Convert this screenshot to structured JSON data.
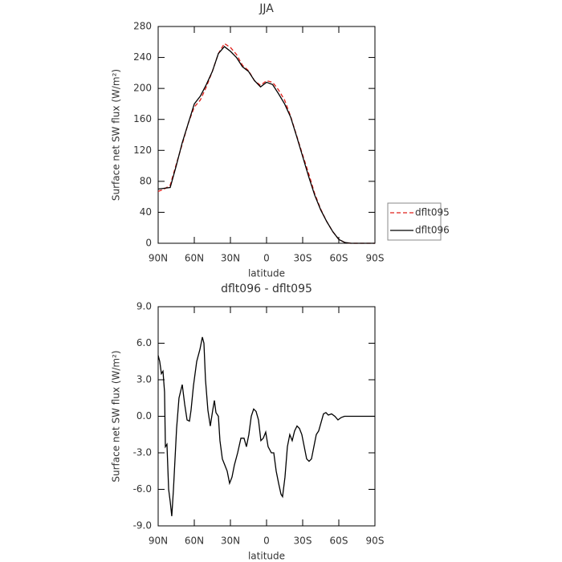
{
  "chart_data": [
    {
      "type": "line",
      "title": "JJA",
      "xlabel": "latitude",
      "ylabel": "Surface net SW flux (W/m²)",
      "x": [
        90,
        85,
        80,
        75,
        70,
        65,
        60,
        55,
        50,
        45,
        40,
        35,
        30,
        25,
        20,
        15,
        10,
        5,
        0,
        -5,
        -10,
        -15,
        -20,
        -25,
        -30,
        -35,
        -40,
        -45,
        -50,
        -55,
        -60,
        -65,
        -70,
        -75,
        -80,
        -85,
        -90
      ],
      "series": [
        {
          "name": "dflt095",
          "color": "#e0201b",
          "dash": true,
          "values": [
            67,
            70,
            75,
            102,
            128,
            155,
            176,
            185,
            202,
            222,
            245,
            258,
            253,
            244,
            230,
            223,
            210,
            204,
            210,
            208,
            198,
            185,
            164,
            139,
            114,
            90,
            64,
            44,
            28,
            15,
            5,
            1,
            0,
            0,
            0,
            0,
            0
          ]
        },
        {
          "name": "dflt096",
          "color": "#000000",
          "dash": false,
          "values": [
            70,
            71,
            72,
            100,
            130,
            155,
            180,
            190,
            205,
            222,
            245,
            254,
            248,
            240,
            228,
            222,
            210,
            202,
            208,
            205,
            193,
            180,
            163,
            138,
            112,
            86,
            62,
            43,
            28,
            15,
            5,
            1,
            0,
            0,
            0,
            0,
            0
          ]
        }
      ],
      "xlim": [
        90,
        -90
      ],
      "xticks": [
        {
          "value": 90,
          "label": "90N"
        },
        {
          "value": 60,
          "label": "60N"
        },
        {
          "value": 30,
          "label": "30N"
        },
        0,
        {
          "value": -30,
          "label": "30S"
        },
        {
          "value": -60,
          "label": "60S"
        },
        {
          "value": -90,
          "label": "90S"
        }
      ],
      "ylim": [
        0,
        280
      ],
      "yticks": [
        0,
        40,
        80,
        120,
        160,
        200,
        240,
        280
      ],
      "legend": "right"
    },
    {
      "type": "line",
      "title": "dflt096 - dflt095",
      "xlabel": "latitude",
      "ylabel": "Surface net SW flux (W/m²)",
      "x": [
        90,
        88.7,
        87.3,
        86,
        84.7,
        84,
        82.7,
        81.3,
        80,
        78.7,
        77.3,
        74.7,
        72.7,
        70,
        68,
        66,
        64,
        62.7,
        60.7,
        58,
        55.3,
        53.3,
        52,
        50.7,
        48.7,
        46.7,
        44.7,
        43.3,
        42,
        40,
        38.7,
        36.7,
        34.7,
        32.7,
        30.7,
        28.7,
        26.7,
        24,
        21.3,
        18.7,
        16.7,
        14.7,
        12.7,
        10.7,
        8.7,
        6.7,
        4.7,
        2.7,
        0.7,
        -1.3,
        -4,
        -6,
        -8,
        -10,
        -12,
        -13.3,
        -15.3,
        -17.3,
        -19.3,
        -21.3,
        -23.3,
        -25.3,
        -27.3,
        -29.3,
        -31.3,
        -33.3,
        -35.3,
        -37.3,
        -39.3,
        -41.3,
        -43.3,
        -45.3,
        -47.3,
        -49.3,
        -51.3,
        -54,
        -56.7,
        -59.3,
        -62,
        -64.7,
        -68.7,
        -90
      ],
      "series": [
        {
          "name": "dflt096 - dflt095",
          "color": "#000000",
          "dash": false,
          "values": [
            5.0,
            4.5,
            3.5,
            3.7,
            2.0,
            -2.5,
            -2.3,
            -6.0,
            -7.0,
            -8.2,
            -6.0,
            -1.0,
            1.5,
            2.6,
            1.0,
            -0.3,
            -0.4,
            0.5,
            2.5,
            4.5,
            5.5,
            6.5,
            6.0,
            3.0,
            0.5,
            -0.8,
            0.5,
            1.3,
            0.3,
            0,
            -2.0,
            -3.5,
            -4.0,
            -4.5,
            -5.5,
            -5.0,
            -4.0,
            -3.0,
            -1.8,
            -1.8,
            -2.5,
            -1.5,
            0,
            0.6,
            0.4,
            -0.3,
            -2.0,
            -1.8,
            -1.3,
            -2.5,
            -3.0,
            -3.0,
            -4.5,
            -5.5,
            -6.4,
            -6.6,
            -5.0,
            -2.5,
            -1.5,
            -2.0,
            -1.2,
            -0.8,
            -1.0,
            -1.5,
            -2.5,
            -3.5,
            -3.7,
            -3.5,
            -2.5,
            -1.5,
            -1.2,
            -0.5,
            0.2,
            0.3,
            0.1,
            0.2,
            0.0,
            -0.3,
            -0.1,
            0,
            0,
            0
          ]
        }
      ],
      "xlim": [
        90,
        -90
      ],
      "xticks": [
        {
          "value": 90,
          "label": "90N"
        },
        {
          "value": 60,
          "label": "60N"
        },
        {
          "value": 30,
          "label": "30N"
        },
        0,
        {
          "value": -30,
          "label": "30S"
        },
        {
          "value": -60,
          "label": "60S"
        },
        {
          "value": -90,
          "label": "90S"
        }
      ],
      "ylim": [
        -9,
        9
      ],
      "yticks": [
        {
          "value": -9,
          "label": "-9.0"
        },
        {
          "value": -6,
          "label": "-6.0"
        },
        {
          "value": -3,
          "label": "-3.0"
        },
        {
          "value": 0,
          "label": "0.0"
        },
        {
          "value": 3,
          "label": "3.0"
        },
        {
          "value": 6,
          "label": "6.0"
        },
        {
          "value": 9,
          "label": "9.0"
        }
      ]
    }
  ]
}
